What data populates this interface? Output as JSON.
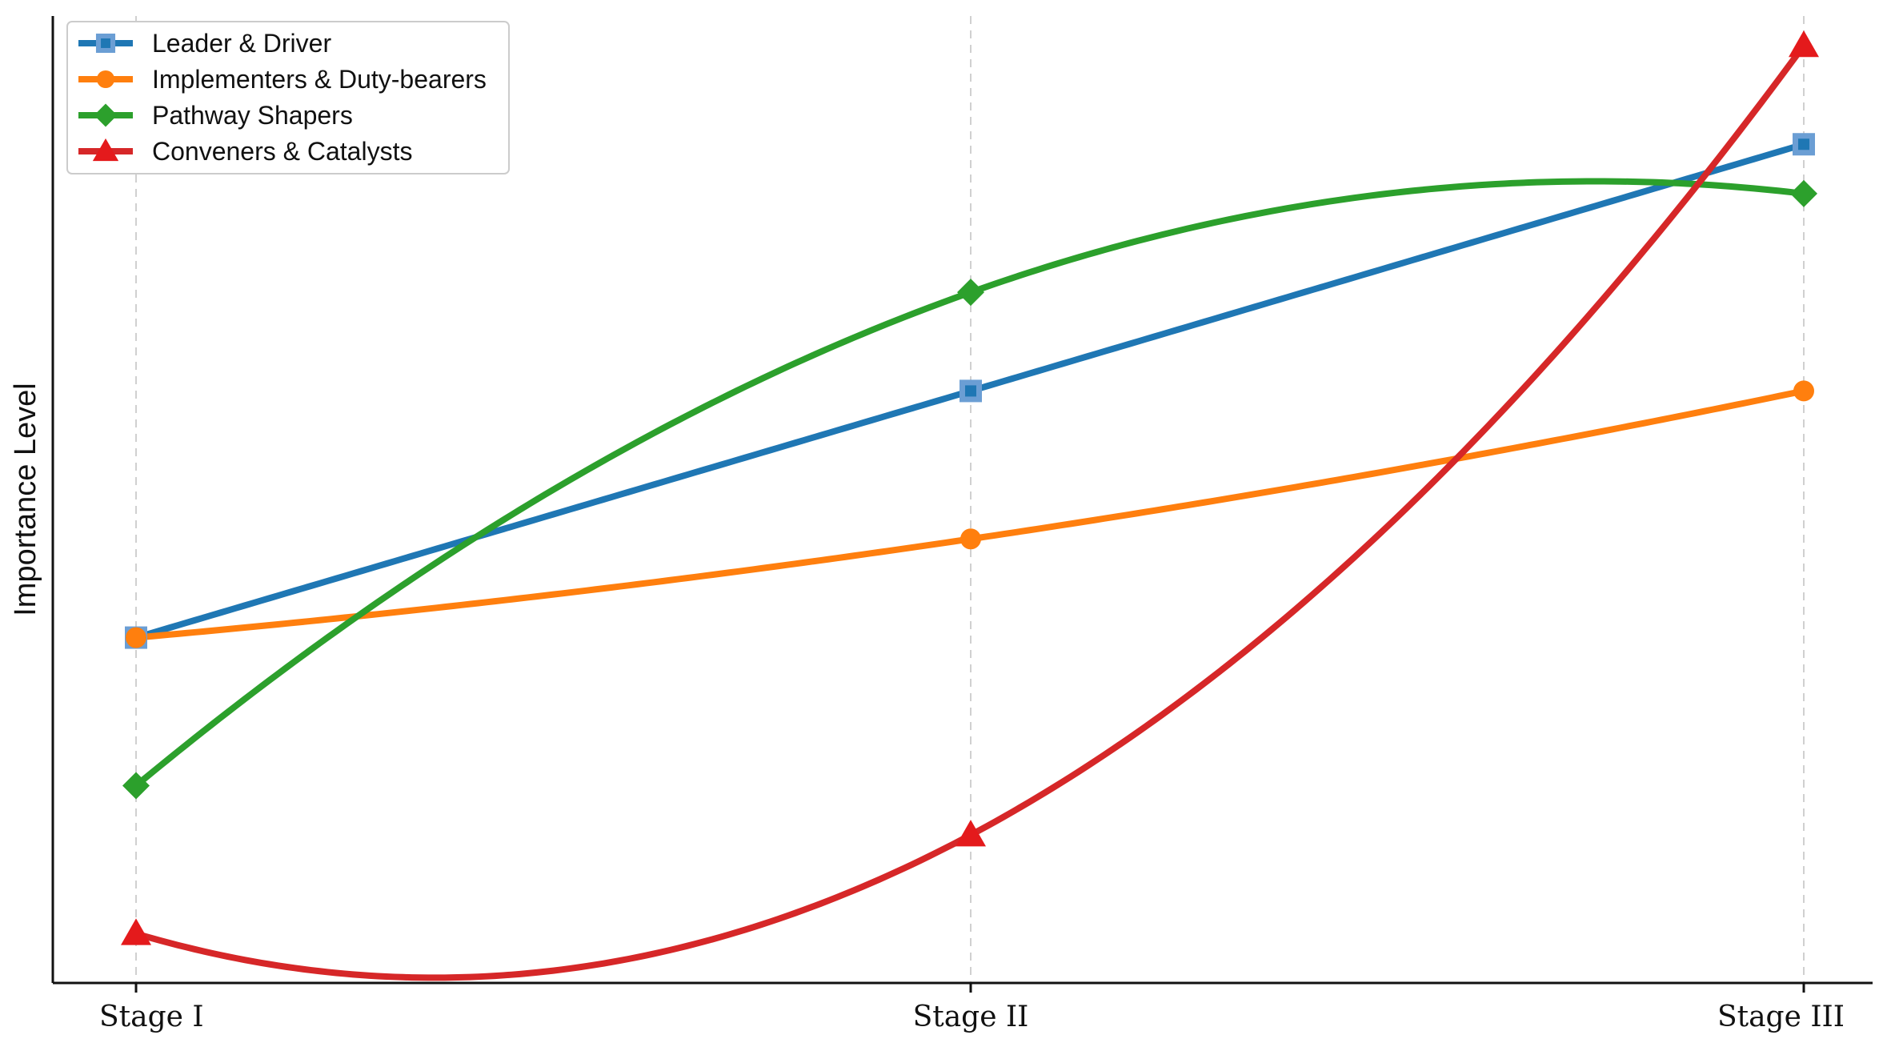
{
  "chart_data": {
    "type": "line",
    "title": "",
    "xlabel": "",
    "ylabel": "Importance Level",
    "categories": [
      "Stage I",
      "Stage II",
      "Stage III"
    ],
    "ylim": [
      0.5,
      10.3
    ],
    "yticks_visible": false,
    "grid": "vertical dashed at categories",
    "legend_position": "top-left",
    "smooth": true,
    "series": [
      {
        "name": "Leader & Driver",
        "values": [
          4,
          6.5,
          9
        ],
        "color": "#1f77b4",
        "marker": "square"
      },
      {
        "name": "Implementers & Duty-bearers",
        "values": [
          4,
          5,
          6.5
        ],
        "color": "#ff7f0e",
        "marker": "circle"
      },
      {
        "name": "Pathway Shapers",
        "values": [
          2.5,
          7.5,
          8.5
        ],
        "color": "#2ca02c",
        "marker": "diamond"
      },
      {
        "name": "Conveners & Catalysts",
        "values": [
          1,
          2,
          10
        ],
        "color": "#d62728",
        "marker": "triangle"
      }
    ]
  }
}
